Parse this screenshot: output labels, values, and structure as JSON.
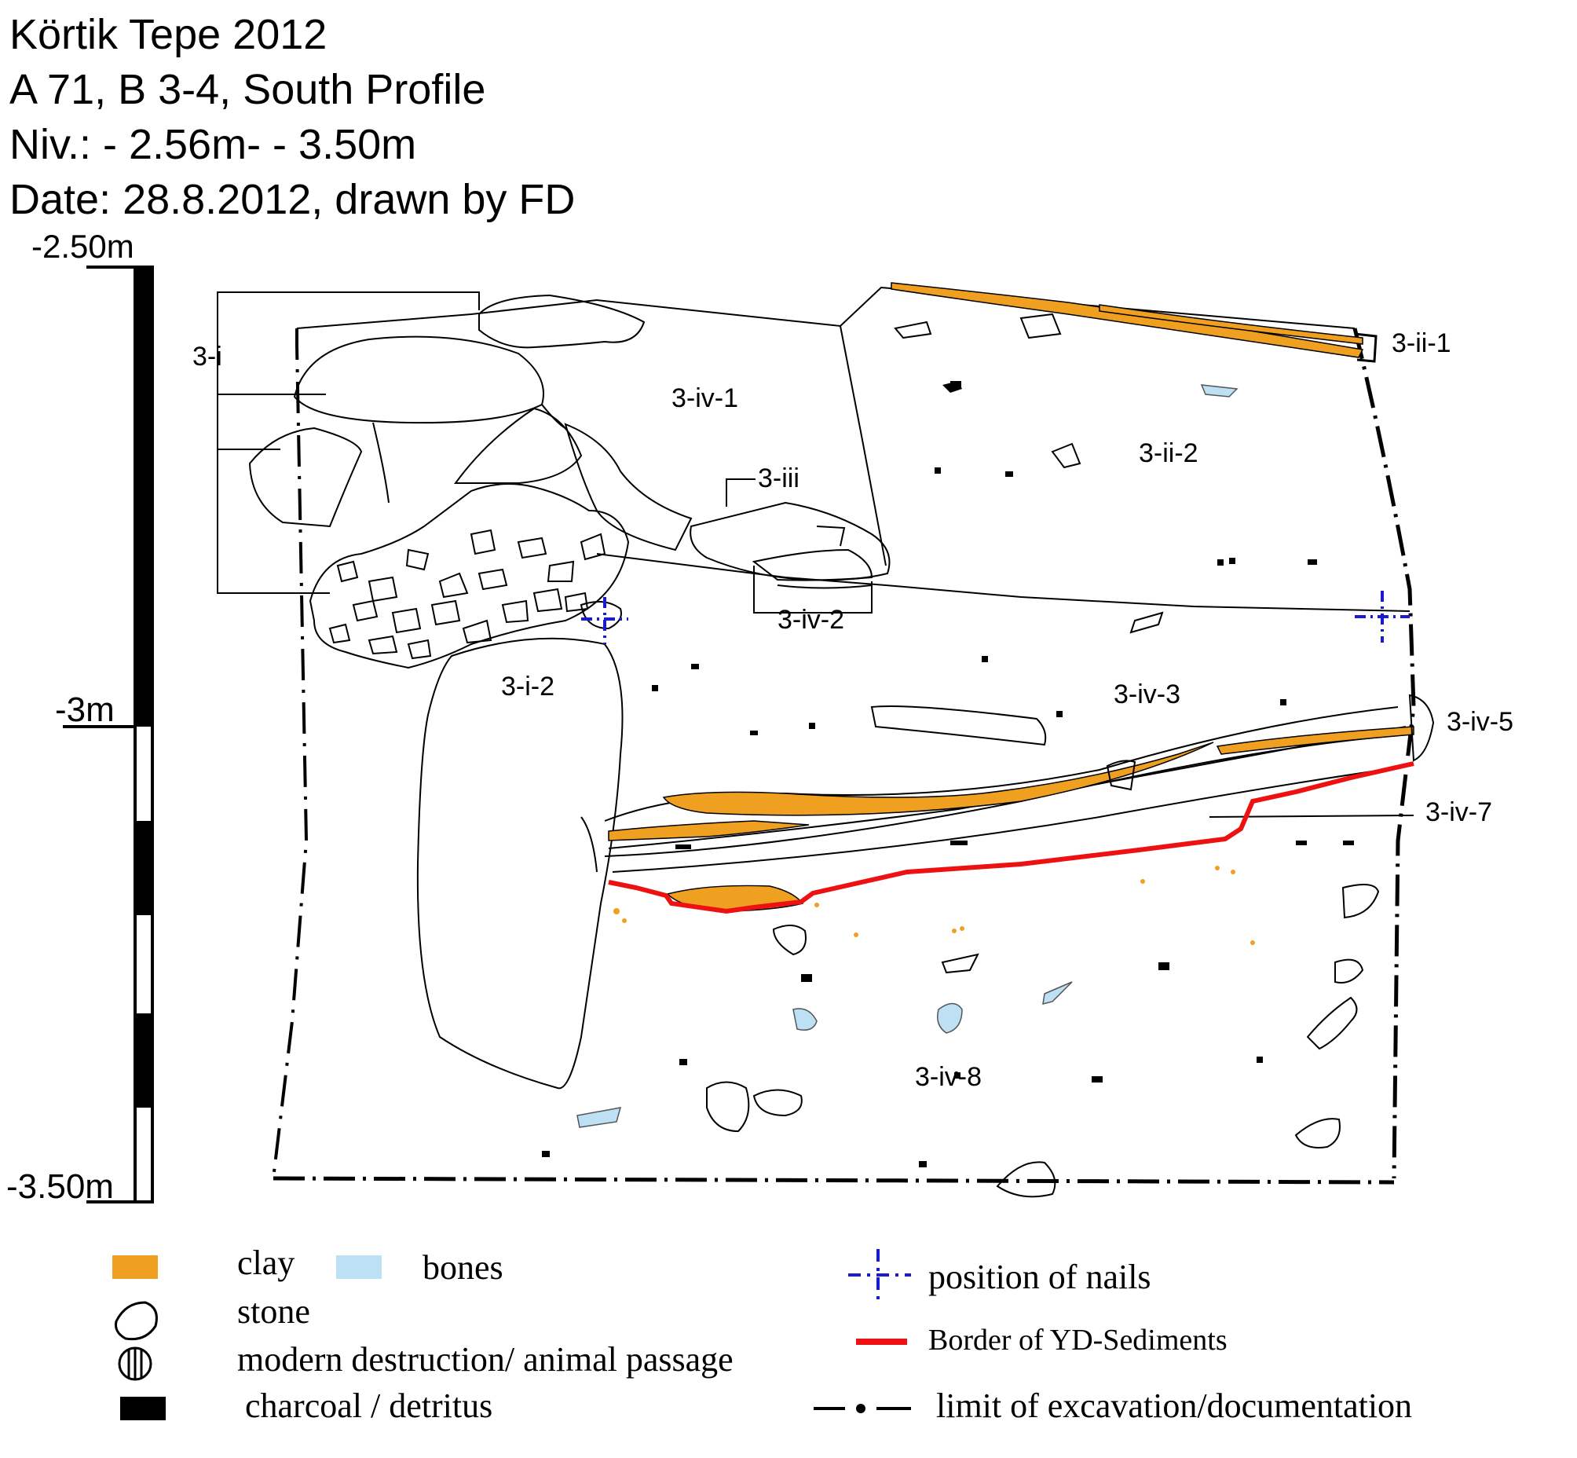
{
  "header": {
    "line1": "Körtik Tepe 2012",
    "line2": "A 71, B 3-4, South Profile",
    "line3": "Niv.: - 2.56m- - 3.50m",
    "line4": "Date: 28.8.2012, drawn by FD"
  },
  "scale": {
    "top": "-2.50m",
    "mid": "-3m",
    "bottom": "-3.50m"
  },
  "layers": {
    "l_3_i": "3-i",
    "l_3_i_2": "3-i-2",
    "l_3_iv_1": "3-iv-1",
    "l_3_iii": "3-iii",
    "l_3_iv_2": "3-iv-2",
    "l_3_ii_1": "3-ii-1",
    "l_3_ii_2": "3-ii-2",
    "l_3_iv_3": "3-iv-3",
    "l_3_iv_5": "3-iv-5",
    "l_3_iv_7": "3-iv-7",
    "l_3_iv_8": "3-iv-8"
  },
  "legend": {
    "clay": "clay",
    "bones": "bones",
    "stone": "stone",
    "modern": "modern destruction/ animal passage",
    "charcoal": "charcoal / detritus",
    "nails": "position of nails",
    "yd": "Border of YD-Sediments",
    "limit": "limit of excavation/documentation"
  },
  "colors": {
    "clay": "#f0a020",
    "bones": "#bde0f5",
    "nails": "#1a1ad0",
    "yd_border": "#ee1111",
    "ink": "#000000"
  }
}
